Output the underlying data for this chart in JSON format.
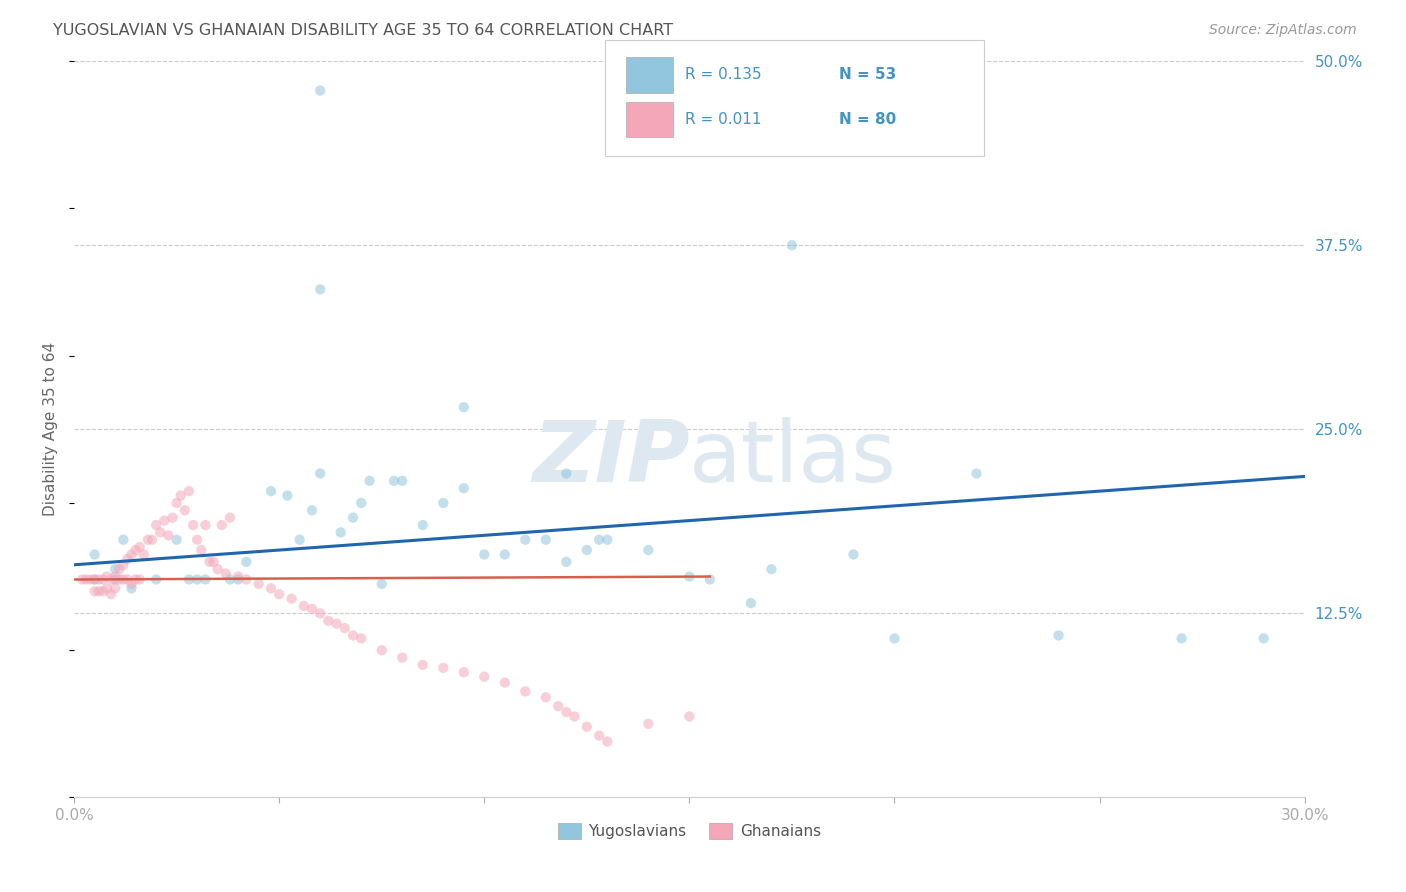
{
  "title": "YUGOSLAVIAN VS GHANAIAN DISABILITY AGE 35 TO 64 CORRELATION CHART",
  "source": "Source: ZipAtlas.com",
  "ylabel": "Disability Age 35 to 64",
  "legend_label_blue": "Yugoslavians",
  "legend_label_pink": "Ghanaians",
  "blue_color": "#92c5de",
  "pink_color": "#f4a7b9",
  "blue_line_color": "#2166ac",
  "pink_line_color": "#d6604d",
  "text_color": "#4393c3",
  "title_color": "#555555",
  "source_color": "#999999",
  "background_color": "#ffffff",
  "grid_color": "#cccccc",
  "watermark_color": "#dde8f0",
  "xlim": [
    0.0,
    0.3
  ],
  "ylim": [
    0.0,
    0.5
  ],
  "blue_scatter_x": [
    0.06,
    0.06,
    0.005,
    0.005,
    0.01,
    0.01,
    0.012,
    0.014,
    0.02,
    0.025,
    0.028,
    0.03,
    0.032,
    0.038,
    0.04,
    0.042,
    0.048,
    0.052,
    0.055,
    0.058,
    0.06,
    0.065,
    0.068,
    0.07,
    0.072,
    0.075,
    0.078,
    0.08,
    0.085,
    0.09,
    0.095,
    0.095,
    0.1,
    0.105,
    0.11,
    0.115,
    0.12,
    0.12,
    0.125,
    0.128,
    0.13,
    0.14,
    0.15,
    0.155,
    0.165,
    0.17,
    0.175,
    0.19,
    0.2,
    0.22,
    0.24,
    0.27,
    0.29
  ],
  "blue_scatter_y": [
    0.48,
    0.345,
    0.165,
    0.148,
    0.155,
    0.148,
    0.175,
    0.142,
    0.148,
    0.175,
    0.148,
    0.148,
    0.148,
    0.148,
    0.148,
    0.16,
    0.208,
    0.205,
    0.175,
    0.195,
    0.22,
    0.18,
    0.19,
    0.2,
    0.215,
    0.145,
    0.215,
    0.215,
    0.185,
    0.2,
    0.21,
    0.265,
    0.165,
    0.165,
    0.175,
    0.175,
    0.16,
    0.22,
    0.168,
    0.175,
    0.175,
    0.168,
    0.15,
    0.148,
    0.132,
    0.155,
    0.375,
    0.165,
    0.108,
    0.22,
    0.11,
    0.108,
    0.108
  ],
  "pink_scatter_x": [
    0.002,
    0.003,
    0.004,
    0.005,
    0.005,
    0.006,
    0.006,
    0.007,
    0.007,
    0.008,
    0.008,
    0.009,
    0.009,
    0.01,
    0.01,
    0.011,
    0.011,
    0.012,
    0.012,
    0.013,
    0.013,
    0.014,
    0.014,
    0.015,
    0.015,
    0.016,
    0.016,
    0.017,
    0.018,
    0.019,
    0.02,
    0.021,
    0.022,
    0.023,
    0.024,
    0.025,
    0.026,
    0.027,
    0.028,
    0.029,
    0.03,
    0.031,
    0.032,
    0.033,
    0.034,
    0.035,
    0.036,
    0.037,
    0.038,
    0.04,
    0.042,
    0.045,
    0.048,
    0.05,
    0.053,
    0.056,
    0.058,
    0.06,
    0.062,
    0.064,
    0.066,
    0.068,
    0.07,
    0.075,
    0.08,
    0.085,
    0.09,
    0.095,
    0.1,
    0.105,
    0.11,
    0.115,
    0.118,
    0.12,
    0.122,
    0.125,
    0.128,
    0.13,
    0.14,
    0.15
  ],
  "pink_scatter_y": [
    0.148,
    0.148,
    0.148,
    0.148,
    0.14,
    0.148,
    0.14,
    0.148,
    0.14,
    0.15,
    0.142,
    0.148,
    0.138,
    0.15,
    0.142,
    0.155,
    0.148,
    0.158,
    0.148,
    0.162,
    0.148,
    0.165,
    0.145,
    0.168,
    0.148,
    0.17,
    0.148,
    0.165,
    0.175,
    0.175,
    0.185,
    0.18,
    0.188,
    0.178,
    0.19,
    0.2,
    0.205,
    0.195,
    0.208,
    0.185,
    0.175,
    0.168,
    0.185,
    0.16,
    0.16,
    0.155,
    0.185,
    0.152,
    0.19,
    0.15,
    0.148,
    0.145,
    0.142,
    0.138,
    0.135,
    0.13,
    0.128,
    0.125,
    0.12,
    0.118,
    0.115,
    0.11,
    0.108,
    0.1,
    0.095,
    0.09,
    0.088,
    0.085,
    0.082,
    0.078,
    0.072,
    0.068,
    0.062,
    0.058,
    0.055,
    0.048,
    0.042,
    0.038,
    0.05,
    0.055
  ],
  "blue_line_x": [
    0.0,
    0.3
  ],
  "blue_line_y": [
    0.158,
    0.218
  ],
  "pink_line_x": [
    0.0,
    0.155
  ],
  "pink_line_y": [
    0.148,
    0.15
  ],
  "scatter_size": 55,
  "scatter_alpha": 0.55,
  "scatter_lw": 0.0
}
